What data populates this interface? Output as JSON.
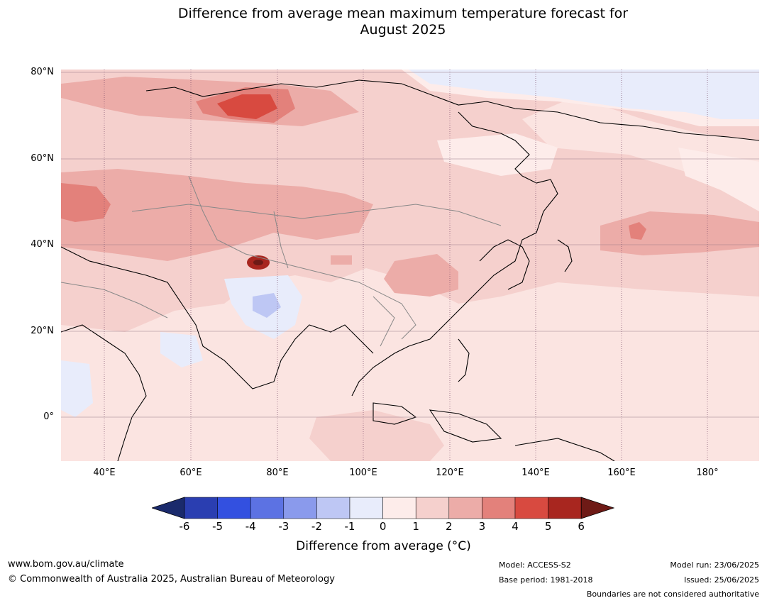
{
  "title_line1": "Difference from average mean maximum temperature forecast for",
  "title_line2": "August 2025",
  "map": {
    "lat_labels": [
      "80°N",
      "60°N",
      "40°N",
      "20°N",
      "0°"
    ],
    "lon_labels": [
      "40°E",
      "60°E",
      "80°E",
      "100°E",
      "120°E",
      "140°E",
      "160°E",
      "180°"
    ],
    "land_color": "#fdecea",
    "ocean_color": "#fbe4e1"
  },
  "colorbar": {
    "label": "Difference from average (°C)",
    "ticks": [
      "-6",
      "-5",
      "-4",
      "-3",
      "-2",
      "-1",
      "0",
      "1",
      "2",
      "3",
      "4",
      "5",
      "6"
    ],
    "colors": [
      "#1a2a6c",
      "#2a3eb1",
      "#3350e0",
      "#5c72e3",
      "#8a9aec",
      "#bec7f4",
      "#e8ecfb",
      "#fdecea",
      "#f5d0cd",
      "#ecaca8",
      "#e3817b",
      "#d84a40",
      "#a8261f",
      "#6e1a16"
    ]
  },
  "footer": {
    "website": "www.bom.gov.au/climate",
    "copyright": "© Commonwealth of Australia 2025, Australian Bureau of Meteorology",
    "model": "Model: ACCESS-S2",
    "base_period": "Base period: 1981-2018",
    "model_run": "Model run: 23/06/2025",
    "issued": "Issued: 25/06/2025",
    "disclaimer": "Boundaries are not considered authoritative"
  }
}
